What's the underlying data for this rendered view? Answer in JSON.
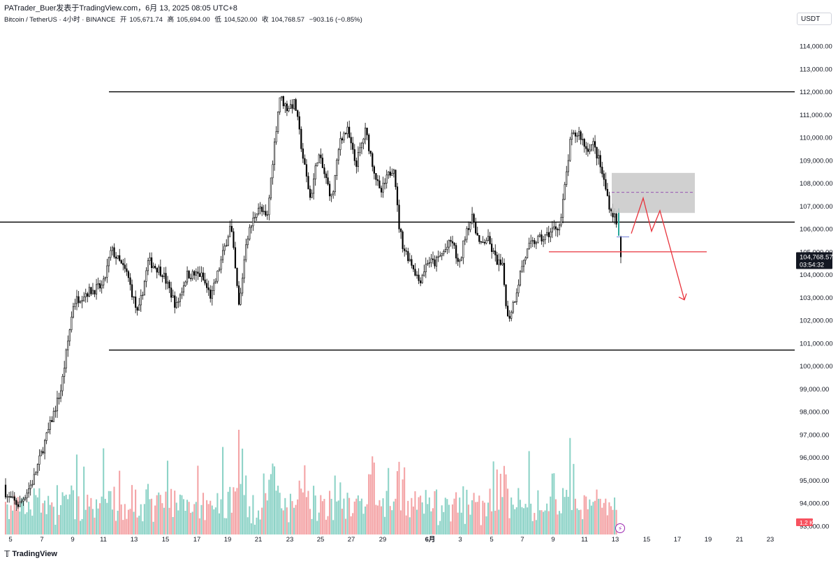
{
  "header": {
    "credit": "PATrader_Buer发表于TradingView.com，6月 13, 2025 08:05 UTC+8",
    "symbol": "Bitcoin / TetherUS · 4小时 · BINANCE",
    "open_label": "开",
    "open": "105,671.74",
    "high_label": "高",
    "high": "105,694.00",
    "low_label": "低",
    "low": "104,520.00",
    "close_label": "收",
    "close": "104,768.57",
    "change": "−903.16 (−0.85%)"
  },
  "currency": "USDT",
  "last_price": {
    "value": "104,768.57",
    "countdown": "03:54:32",
    "color": "#131722"
  },
  "volume_badge": {
    "value": "1.2 K",
    "color": "#f7525f"
  },
  "footer": {
    "brand": "TradingView",
    "logo_icon": "tradingview-logo-icon"
  },
  "lightning_icon": "lightning-icon",
  "colors": {
    "up": "#ffffff",
    "down": "#000000",
    "vol_up": "#8dd3c7",
    "vol_down": "#f4a4a6",
    "annotation": "#e8333c",
    "zone": "#c8c8c8"
  },
  "chart_data": {
    "type": "candlestick",
    "ylim": [
      93000,
      115000
    ],
    "price_ticks": [
      "114,000.00",
      "113,000.00",
      "112,000.00",
      "111,000.00",
      "110,000.00",
      "109,000.00",
      "108,000.00",
      "107,000.00",
      "106,000.00",
      "105,000.00",
      "104,000.00",
      "103,000.00",
      "102,000.00",
      "101,000.00",
      "100,000.00",
      "99,000.00",
      "98,000.00",
      "97,000.00",
      "96,000.00",
      "95,000.00",
      "94,000.00",
      "93,000.00"
    ],
    "time_ticks": [
      "5",
      "7",
      "9",
      "11",
      "13",
      "15",
      "17",
      "19",
      "21",
      "23",
      "25",
      "27",
      "29",
      "6月",
      "3",
      "5",
      "7",
      "9",
      "11",
      "13",
      "15",
      "17",
      "19",
      "21",
      "23"
    ],
    "key_path": [
      [
        0,
        95800
      ],
      [
        12,
        94300
      ],
      [
        30,
        93900
      ],
      [
        50,
        95000
      ],
      [
        70,
        97000
      ],
      [
        90,
        99000
      ],
      [
        108,
        102800
      ],
      [
        125,
        103200
      ],
      [
        150,
        103500
      ],
      [
        162,
        105100
      ],
      [
        185,
        104000
      ],
      [
        200,
        102200
      ],
      [
        215,
        104600
      ],
      [
        235,
        104100
      ],
      [
        255,
        102600
      ],
      [
        270,
        104000
      ],
      [
        290,
        104000
      ],
      [
        305,
        103000
      ],
      [
        320,
        104700
      ],
      [
        333,
        106200
      ],
      [
        345,
        102500
      ],
      [
        355,
        105500
      ],
      [
        372,
        107000
      ],
      [
        385,
        106400
      ],
      [
        393,
        109000
      ],
      [
        403,
        111800
      ],
      [
        413,
        111300
      ],
      [
        425,
        111500
      ],
      [
        437,
        109000
      ],
      [
        447,
        107300
      ],
      [
        458,
        109300
      ],
      [
        468,
        108300
      ],
      [
        478,
        107300
      ],
      [
        490,
        110000
      ],
      [
        500,
        110300
      ],
      [
        512,
        108800
      ],
      [
        526,
        110300
      ],
      [
        535,
        109000
      ],
      [
        547,
        107500
      ],
      [
        558,
        108300
      ],
      [
        567,
        108800
      ],
      [
        573,
        106300
      ],
      [
        580,
        105200
      ],
      [
        592,
        104500
      ],
      [
        603,
        103700
      ],
      [
        615,
        104600
      ],
      [
        625,
        104500
      ],
      [
        638,
        105000
      ],
      [
        650,
        105500
      ],
      [
        660,
        104300
      ],
      [
        670,
        106000
      ],
      [
        680,
        106500
      ],
      [
        690,
        105200
      ],
      [
        700,
        105600
      ],
      [
        712,
        104700
      ],
      [
        722,
        104300
      ],
      [
        730,
        102000
      ],
      [
        740,
        103000
      ],
      [
        750,
        104400
      ],
      [
        760,
        105200
      ],
      [
        770,
        105500
      ],
      [
        782,
        105600
      ],
      [
        795,
        106000
      ],
      [
        805,
        106200
      ],
      [
        812,
        108000
      ],
      [
        820,
        110000
      ],
      [
        832,
        110200
      ],
      [
        842,
        109500
      ],
      [
        852,
        109700
      ],
      [
        860,
        109000
      ],
      [
        868,
        108000
      ],
      [
        877,
        106800
      ],
      [
        884,
        106500
      ],
      [
        890,
        104800
      ]
    ],
    "levels": [
      112000,
      106300,
      100700
    ],
    "red_line": 105000,
    "zone": [
      106700,
      108450
    ],
    "zone_mid": 107600,
    "projection": [
      [
        904,
        105800
      ],
      [
        921,
        107350
      ],
      [
        933,
        105900
      ],
      [
        945,
        106800
      ],
      [
        980,
        102900
      ]
    ],
    "last": 104768.57
  }
}
